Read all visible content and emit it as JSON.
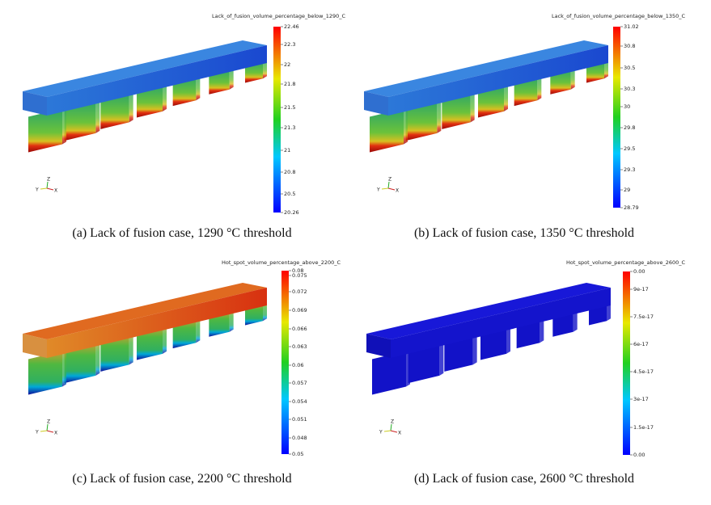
{
  "panels": [
    {
      "colorbar_title": "Lack_of_fusion_volume_percentage_below_1290_C",
      "ticks": [
        "22.46",
        "22.3",
        "22",
        "21.8",
        "21.5",
        "21.3",
        "21",
        "20.8",
        "20.5",
        "20.26"
      ],
      "axis_labels": [
        "Z",
        "Y",
        "X"
      ],
      "caption": "(a) Lack of fusion case, 1290 °C threshold"
    },
    {
      "colorbar_title": "Lack_of_fusion_volume_percentage_below_1350_C",
      "ticks": [
        "31.02",
        "30.8",
        "30.5",
        "30.3",
        "30",
        "29.8",
        "29.5",
        "29.3",
        "29",
        "28.79"
      ],
      "axis_labels": [
        "Z",
        "Y",
        "X"
      ],
      "caption": "(b) Lack of fusion case, 1350 °C threshold"
    },
    {
      "colorbar_title": "Hot_spot_volume_percentage_above_2200_C",
      "ticks": [
        "0.08",
        "0.075",
        "0.072",
        "0.069",
        "0.066",
        "0.063",
        "0.06",
        "0.057",
        "0.054",
        "0.051",
        "0.048",
        "0.05"
      ],
      "axis_labels": [
        "Z",
        "Y",
        "X"
      ],
      "caption": "(c) Lack of fusion case, 2200 °C threshold"
    },
    {
      "colorbar_title": "Hot_spot_volume_percentage_above_2600_C",
      "ticks": [
        "0.00",
        "9e-17",
        "7.5e-17",
        "6e-17",
        "4.5e-17",
        "3e-17",
        "1.5e-17",
        "0.00"
      ],
      "axis_labels": [
        "Z",
        "Y",
        "X"
      ],
      "caption": "(d) Lack of fusion case, 2600 °C threshold"
    }
  ]
}
